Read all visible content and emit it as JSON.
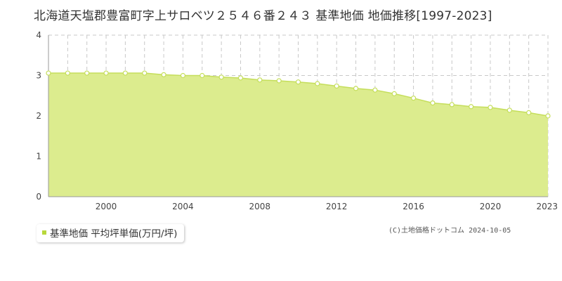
{
  "title": "北海道天塩郡豊富町字上サロベツ２５４６番２４３ 基準地価 地価推移[1997-2023]",
  "legend": {
    "label": "基準地価 平均坪単価(万円/坪)"
  },
  "credit": "(C)土地価格ドットコム 2024-10-05",
  "colors": {
    "area_fill": "#dcec8e",
    "line": "#c5de5b",
    "marker_fill": "#ffffff",
    "marker_stroke": "#c5de5b",
    "grid": "#c8c8c8",
    "legend_swatch": "#b8d83c"
  },
  "chart_data": {
    "type": "area",
    "title": "北海道天塩郡豊富町字上サロベツ２５４６番２４３ 基準地価 地価推移[1997-2023]",
    "xlabel": "",
    "ylabel": "",
    "x": [
      1997,
      1998,
      1999,
      2000,
      2001,
      2002,
      2003,
      2004,
      2005,
      2006,
      2007,
      2008,
      2009,
      2010,
      2011,
      2012,
      2013,
      2014,
      2015,
      2016,
      2017,
      2018,
      2019,
      2020,
      2021,
      2022,
      2023
    ],
    "series": [
      {
        "name": "基準地価 平均坪単価(万円/坪)",
        "values": [
          3.06,
          3.06,
          3.06,
          3.06,
          3.06,
          3.06,
          3.02,
          3.0,
          3.0,
          2.96,
          2.94,
          2.89,
          2.87,
          2.84,
          2.8,
          2.74,
          2.68,
          2.64,
          2.55,
          2.44,
          2.32,
          2.28,
          2.23,
          2.21,
          2.14,
          2.08,
          2.0
        ]
      }
    ],
    "xlim": [
      1997,
      2023
    ],
    "ylim": [
      0,
      4
    ],
    "x_ticks": [
      "2000",
      "2004",
      "2008",
      "2012",
      "2016",
      "2020",
      "2023"
    ],
    "y_ticks": [
      "0",
      "1",
      "2",
      "3",
      "4"
    ],
    "grid": true,
    "legend_position": "bottom-left"
  }
}
